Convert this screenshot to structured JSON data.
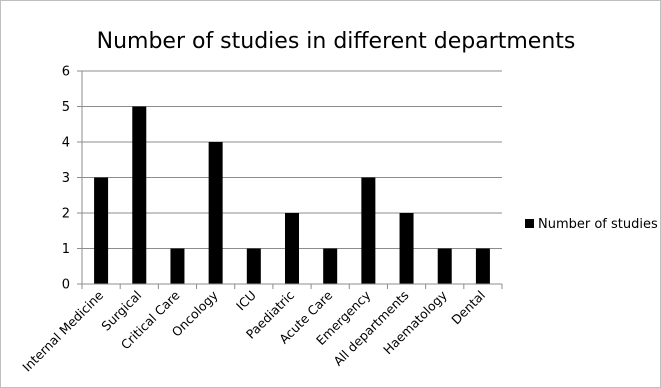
{
  "chart_data": {
    "type": "bar",
    "title": "Number of studies in different departments",
    "categories": [
      "Internal Medicine",
      "Surgical",
      "Critical Care",
      "Oncology",
      "ICU",
      "Paediatric",
      "Acute Care",
      "Emergency",
      "All departments",
      "Haematology",
      "Dental"
    ],
    "series": [
      {
        "name": "Number of studies",
        "values": [
          3,
          5,
          1,
          4,
          1,
          2,
          1,
          3,
          2,
          1,
          1
        ],
        "color": "#000000"
      }
    ],
    "ylim": [
      0,
      6
    ],
    "yticks": [
      "0",
      "1",
      "2",
      "3",
      "4",
      "5",
      "6"
    ],
    "grid": true,
    "gridColor": "#8c8c8c",
    "legend": "right"
  }
}
